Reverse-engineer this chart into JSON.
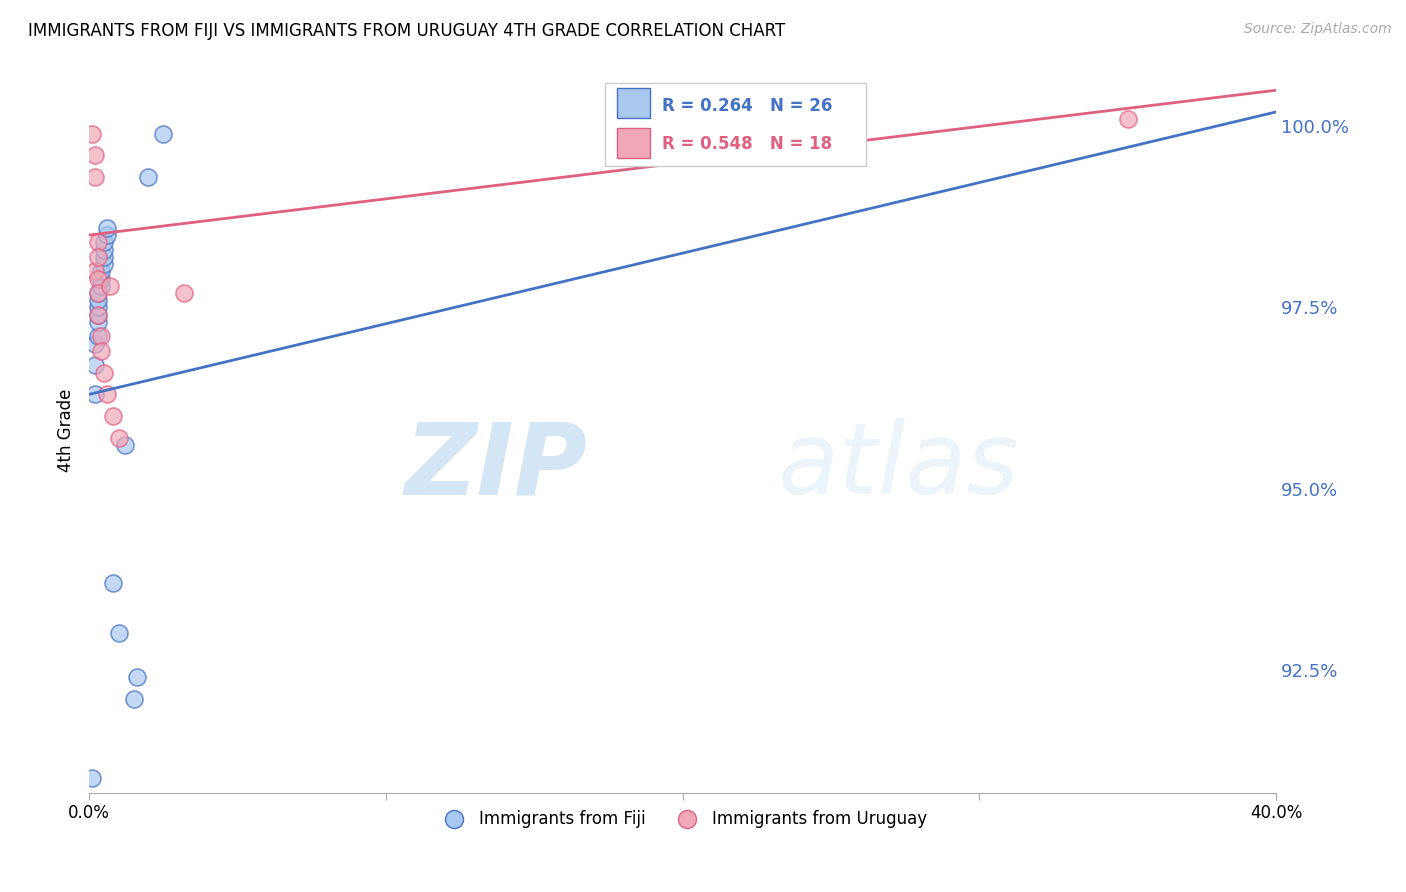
{
  "title": "IMMIGRANTS FROM FIJI VS IMMIGRANTS FROM URUGUAY 4TH GRADE CORRELATION CHART",
  "source": "Source: ZipAtlas.com",
  "ylabel": "4th Grade",
  "xlim": [
    0.0,
    0.4
  ],
  "ylim": [
    0.908,
    1.008
  ],
  "ytick_labels": [
    "100.0%",
    "97.5%",
    "95.0%",
    "92.5%"
  ],
  "ytick_values": [
    1.0,
    0.975,
    0.95,
    0.925
  ],
  "fiji_x": [
    0.001,
    0.002,
    0.002,
    0.002,
    0.003,
    0.003,
    0.003,
    0.003,
    0.003,
    0.003,
    0.004,
    0.004,
    0.004,
    0.005,
    0.005,
    0.005,
    0.005,
    0.006,
    0.006,
    0.008,
    0.01,
    0.012,
    0.015,
    0.016,
    0.02,
    0.025
  ],
  "fiji_y": [
    0.91,
    0.963,
    0.967,
    0.97,
    0.971,
    0.973,
    0.974,
    0.975,
    0.976,
    0.977,
    0.978,
    0.979,
    0.98,
    0.981,
    0.982,
    0.983,
    0.984,
    0.985,
    0.986,
    0.937,
    0.93,
    0.956,
    0.921,
    0.924,
    0.993,
    0.999
  ],
  "uruguay_x": [
    0.001,
    0.002,
    0.002,
    0.002,
    0.003,
    0.003,
    0.003,
    0.003,
    0.003,
    0.004,
    0.004,
    0.005,
    0.006,
    0.007,
    0.008,
    0.01,
    0.032,
    0.35
  ],
  "uruguay_y": [
    0.999,
    0.996,
    0.993,
    0.98,
    0.984,
    0.982,
    0.979,
    0.977,
    0.974,
    0.971,
    0.969,
    0.966,
    0.963,
    0.978,
    0.96,
    0.957,
    0.977,
    1.001
  ],
  "fiji_color": "#a8c8f0",
  "uruguay_color": "#f0a8b8",
  "fiji_line_color": "#4472c4",
  "uruguay_line_color": "#e06080",
  "fiji_R": 0.264,
  "fiji_N": 26,
  "uruguay_R": 0.548,
  "uruguay_N": 18,
  "legend_fiji": "Immigrants from Fiji",
  "legend_uruguay": "Immigrants from Uruguay",
  "watermark_zip": "ZIP",
  "watermark_atlas": "atlas",
  "background_color": "#ffffff",
  "grid_color": "#d0d0d0"
}
